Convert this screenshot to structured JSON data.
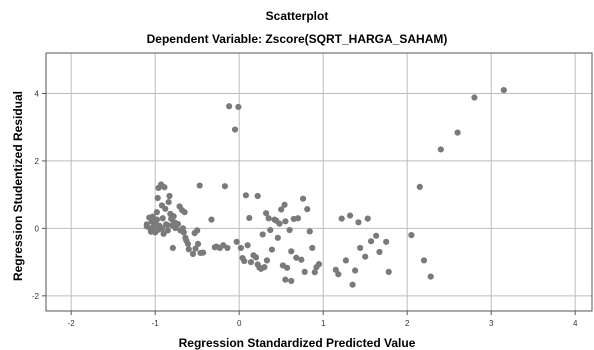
{
  "chart_data": {
    "type": "scatter",
    "title": "Scatterplot",
    "subtitle": "Dependent Variable: Zscore(SQRT_HARGA_SAHAM)",
    "xlabel": "Regression Standardized Predicted Value",
    "ylabel": "Regression Studentized Residual",
    "xlim": [
      -2.3,
      4.2
    ],
    "ylim": [
      -2.45,
      5.2
    ],
    "xticks": [
      -2,
      -1,
      0,
      1,
      2,
      3,
      4
    ],
    "yticks": [
      -2,
      0,
      2,
      4
    ],
    "grid": true,
    "colors": {
      "point": "#7a7a7a",
      "grid": "#bdbdbd",
      "frame": "#555555",
      "background": "#ffffff"
    },
    "points": [
      [
        -1.1,
        0.06
      ],
      [
        -1.1,
        0.12
      ],
      [
        -1.07,
        0.32
      ],
      [
        -1.06,
        0.0
      ],
      [
        -1.05,
        -0.1
      ],
      [
        -1.04,
        0.2
      ],
      [
        -1.03,
        0.35
      ],
      [
        -1.02,
        0.04
      ],
      [
        -1.0,
        0.18
      ],
      [
        -1.0,
        -0.12
      ],
      [
        -0.98,
        0.48
      ],
      [
        -0.98,
        0.26
      ],
      [
        -0.97,
        0.9
      ],
      [
        -0.96,
        1.2
      ],
      [
        -0.96,
        -0.04
      ],
      [
        -0.95,
        0.08
      ],
      [
        -0.93,
        1.3
      ],
      [
        -0.92,
        0.68
      ],
      [
        -0.92,
        0.0
      ],
      [
        -0.91,
        0.3
      ],
      [
        -0.9,
        -0.16
      ],
      [
        -0.89,
        1.22
      ],
      [
        -0.88,
        0.58
      ],
      [
        -0.87,
        0.12
      ],
      [
        -0.86,
        0.1
      ],
      [
        -0.85,
        -0.06
      ],
      [
        -0.84,
        0.78
      ],
      [
        -0.83,
        0.96
      ],
      [
        -0.82,
        0.43
      ],
      [
        -0.81,
        0.28
      ],
      [
        -0.8,
        0.09
      ],
      [
        -0.79,
        -0.58
      ],
      [
        -0.78,
        0.36
      ],
      [
        -0.77,
        0.18
      ],
      [
        -0.76,
        0.01
      ],
      [
        -0.75,
        0.08
      ],
      [
        -0.73,
        0.13
      ],
      [
        -0.71,
        0.65
      ],
      [
        -0.7,
        -0.06
      ],
      [
        -0.68,
        0.54
      ],
      [
        -0.67,
        0.0
      ],
      [
        -0.66,
        -0.12
      ],
      [
        -0.65,
        0.48
      ],
      [
        -0.64,
        -0.28
      ],
      [
        -0.63,
        -0.36
      ],
      [
        -0.61,
        -0.46
      ],
      [
        -0.6,
        -0.62
      ],
      [
        -0.55,
        -0.76
      ],
      [
        -0.53,
        -0.14
      ],
      [
        -0.52,
        -0.6
      ],
      [
        -0.5,
        -0.06
      ],
      [
        -0.49,
        -0.46
      ],
      [
        -0.47,
        1.27
      ],
      [
        -0.46,
        -0.73
      ],
      [
        -0.43,
        -0.72
      ],
      [
        -0.33,
        0.26
      ],
      [
        -0.29,
        -0.56
      ],
      [
        -0.27,
        -0.54
      ],
      [
        -0.23,
        -0.58
      ],
      [
        -0.19,
        -0.5
      ],
      [
        -0.17,
        1.25
      ],
      [
        -0.14,
        -0.58
      ],
      [
        -0.12,
        3.62
      ],
      [
        -0.05,
        2.93
      ],
      [
        -0.03,
        -0.4
      ],
      [
        -0.01,
        3.6
      ],
      [
        0.02,
        -0.58
      ],
      [
        0.04,
        -0.88
      ],
      [
        0.06,
        -0.97
      ],
      [
        0.08,
        0.98
      ],
      [
        0.1,
        -0.5
      ],
      [
        0.12,
        0.31
      ],
      [
        0.14,
        -1.0
      ],
      [
        0.17,
        -0.8
      ],
      [
        0.2,
        -0.86
      ],
      [
        0.22,
        -1.07
      ],
      [
        0.22,
        0.96
      ],
      [
        0.24,
        -1.16
      ],
      [
        0.26,
        -1.2
      ],
      [
        0.28,
        -0.18
      ],
      [
        0.3,
        -1.15
      ],
      [
        0.32,
        0.45
      ],
      [
        0.33,
        -0.95
      ],
      [
        0.35,
        0.3
      ],
      [
        0.37,
        -0.05
      ],
      [
        0.39,
        -0.63
      ],
      [
        0.42,
        0.26
      ],
      [
        0.44,
        0.23
      ],
      [
        0.46,
        -0.28
      ],
      [
        0.48,
        0.14
      ],
      [
        0.5,
        0.56
      ],
      [
        0.52,
        -1.1
      ],
      [
        0.54,
        0.7
      ],
      [
        0.55,
        0.21
      ],
      [
        0.57,
        -1.17
      ],
      [
        0.6,
        -0.05
      ],
      [
        0.62,
        -0.68
      ],
      [
        0.65,
        0.28
      ],
      [
        0.68,
        -0.87
      ],
      [
        0.7,
        0.3
      ],
      [
        0.74,
        -0.93
      ],
      [
        0.76,
        0.88
      ],
      [
        0.78,
        -1.29
      ],
      [
        0.81,
        0.57
      ],
      [
        0.84,
        -0.09
      ],
      [
        0.87,
        -0.58
      ],
      [
        0.9,
        -1.3
      ],
      [
        0.92,
        -1.15
      ],
      [
        0.95,
        -1.06
      ],
      [
        0.55,
        -1.52
      ],
      [
        0.62,
        -1.56
      ],
      [
        1.15,
        -1.23
      ],
      [
        1.18,
        -1.36
      ],
      [
        1.22,
        0.29
      ],
      [
        1.27,
        -0.95
      ],
      [
        1.32,
        0.38
      ],
      [
        1.35,
        -1.67
      ],
      [
        1.38,
        -1.25
      ],
      [
        1.42,
        0.18
      ],
      [
        1.44,
        -0.58
      ],
      [
        1.5,
        -0.84
      ],
      [
        1.53,
        0.29
      ],
      [
        1.57,
        -0.38
      ],
      [
        1.63,
        -0.22
      ],
      [
        1.67,
        -0.7
      ],
      [
        1.75,
        -0.4
      ],
      [
        1.78,
        -1.29
      ],
      [
        2.05,
        -0.2
      ],
      [
        2.15,
        1.23
      ],
      [
        2.2,
        -0.95
      ],
      [
        2.28,
        -1.43
      ],
      [
        2.4,
        2.34
      ],
      [
        2.6,
        2.84
      ],
      [
        2.8,
        3.88
      ],
      [
        3.15,
        4.1
      ]
    ]
  }
}
